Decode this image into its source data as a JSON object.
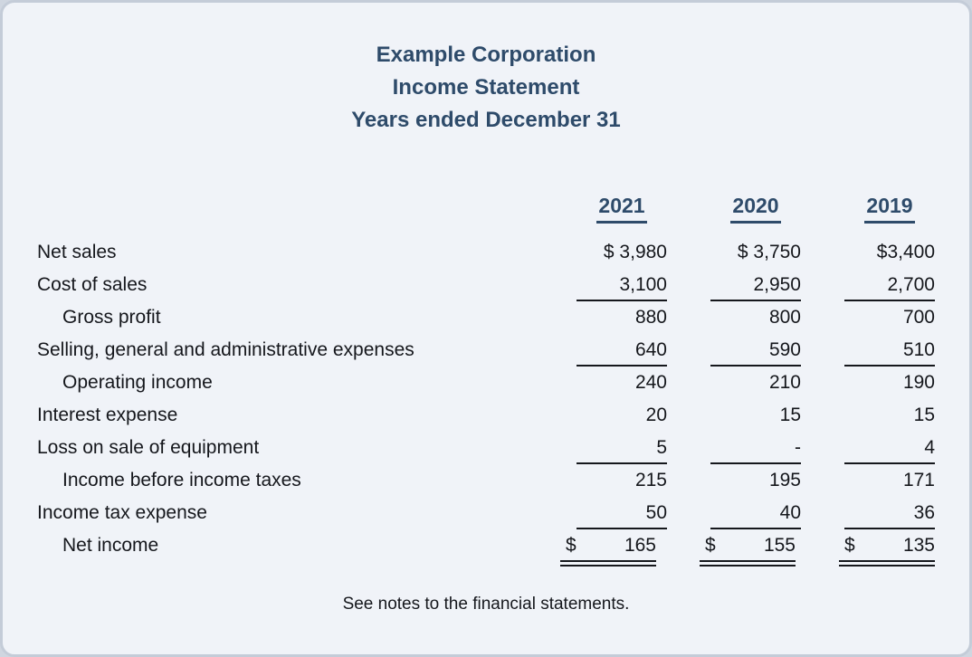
{
  "title": {
    "line1": "Example Corporation",
    "line2": "Income Statement",
    "line3": "Years ended December 31"
  },
  "columns": [
    "2021",
    "2020",
    "2019"
  ],
  "dollar_sign": "$",
  "rows": [
    {
      "label": "Net sales",
      "indent": false,
      "values": [
        "$ 3,980",
        "$ 3,750",
        "$3,400"
      ],
      "underline": "none",
      "dollar_split": false
    },
    {
      "label": "Cost of sales",
      "indent": false,
      "values": [
        "3,100",
        "2,950",
        "2,700"
      ],
      "underline": "single",
      "dollar_split": false
    },
    {
      "label": "Gross profit",
      "indent": true,
      "values": [
        "880",
        "800",
        "700"
      ],
      "underline": "none",
      "dollar_split": false
    },
    {
      "label": "Selling, general and administrative expenses",
      "indent": false,
      "values": [
        "640",
        "590",
        "510"
      ],
      "underline": "single",
      "dollar_split": false
    },
    {
      "label": "Operating income",
      "indent": true,
      "values": [
        "240",
        "210",
        "190"
      ],
      "underline": "none",
      "dollar_split": false
    },
    {
      "label": "Interest expense",
      "indent": false,
      "values": [
        "20",
        "15",
        "15"
      ],
      "underline": "none",
      "dollar_split": false
    },
    {
      "label": "Loss on sale of equipment",
      "indent": false,
      "values": [
        "5",
        "-",
        "4"
      ],
      "underline": "single",
      "dollar_split": false
    },
    {
      "label": "Income before income taxes",
      "indent": true,
      "values": [
        "215",
        "195",
        "171"
      ],
      "underline": "none",
      "dollar_split": false
    },
    {
      "label": "Income tax expense",
      "indent": false,
      "values": [
        "50",
        "40",
        "36"
      ],
      "underline": "single",
      "dollar_split": false
    },
    {
      "label": "Net income",
      "indent": true,
      "values": [
        "165",
        "155",
        "135"
      ],
      "underline": "double",
      "dollar_split": true
    }
  ],
  "footer": "See notes to the financial statements.",
  "colors": {
    "accent": "#2e4b6a",
    "text": "#15171c",
    "card_bg": "#f0f3f8",
    "card_border": "#c4ccd8"
  }
}
